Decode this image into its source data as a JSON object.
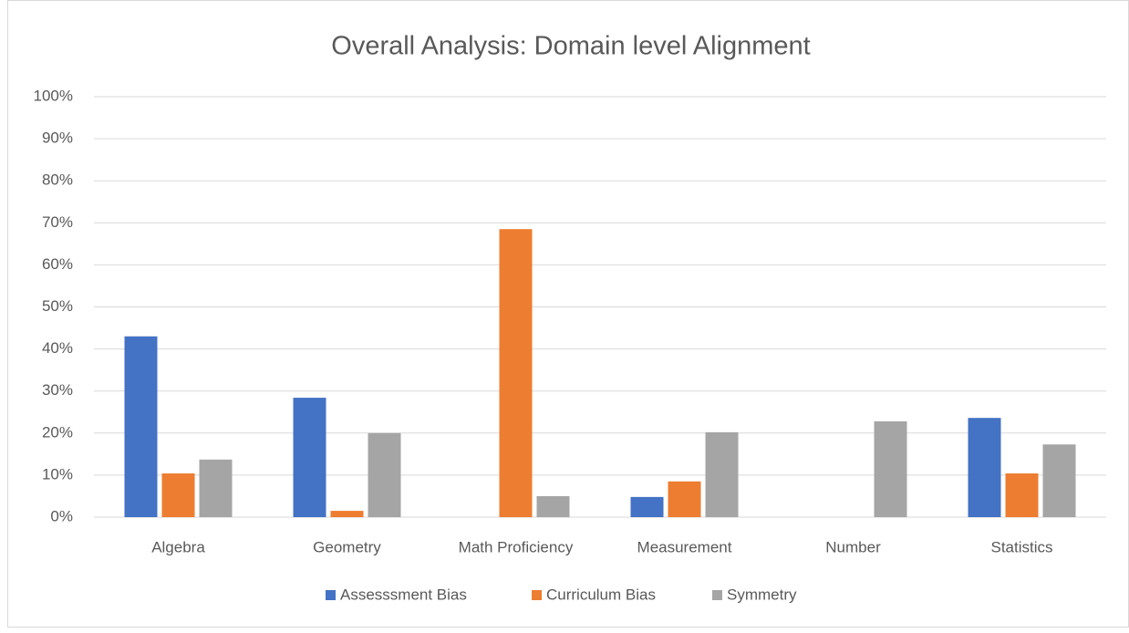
{
  "chart_data": {
    "type": "bar",
    "title": "Overall Analysis: Domain level Alignment",
    "categories": [
      "Algebra",
      "Geometry",
      "Math Proficiency",
      "Measurement",
      "Number",
      "Statistics"
    ],
    "series": [
      {
        "name": "Assesssment Bias",
        "color": "#4472c4",
        "values": [
          43,
          28.4,
          0,
          4.8,
          0,
          23.6
        ]
      },
      {
        "name": "Curriculum Bias",
        "color": "#ed7d31",
        "values": [
          10.4,
          1.5,
          68.5,
          8.5,
          0,
          10.4
        ]
      },
      {
        "name": "Symmetry",
        "color": "#a5a5a5",
        "values": [
          13.7,
          20,
          5,
          20.2,
          22.8,
          17.3
        ]
      }
    ],
    "ylim": [
      0,
      100
    ],
    "yticks": [
      {
        "value": 0,
        "label": "0%"
      },
      {
        "value": 10,
        "label": "10%"
      },
      {
        "value": 20,
        "label": "20%"
      },
      {
        "value": 30,
        "label": "30%"
      },
      {
        "value": 40,
        "label": "40%"
      },
      {
        "value": 50,
        "label": "50%"
      },
      {
        "value": 60,
        "label": "60%"
      },
      {
        "value": 70,
        "label": "70%"
      },
      {
        "value": 80,
        "label": "80%"
      },
      {
        "value": 90,
        "label": "90%"
      },
      {
        "value": 100,
        "label": "100%"
      }
    ],
    "grid": true,
    "legend": "bottom"
  }
}
